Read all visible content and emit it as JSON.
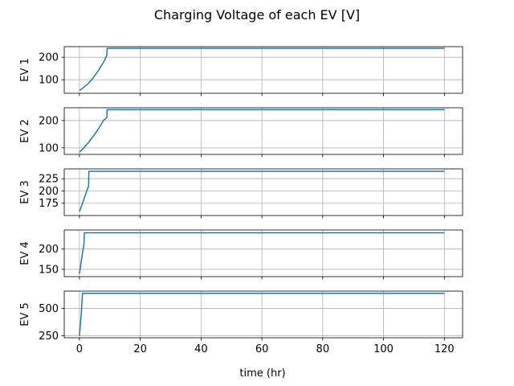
{
  "chart_data": {
    "type": "line",
    "title": "Charging Voltage of each EV [V]",
    "xlabel": "time (hr)",
    "xlim": [
      -5,
      126
    ],
    "x_ticks": [
      0,
      20,
      40,
      60,
      80,
      100,
      120
    ],
    "grid": true,
    "line_color": "#1f77b4",
    "subplots": [
      {
        "ylabel": "EV 1",
        "ylim": [
          40,
          247
        ],
        "y_ticks": [
          100,
          200
        ],
        "x": [
          0,
          1,
          2,
          3,
          4,
          5,
          6,
          7,
          8,
          9,
          9.1,
          120
        ],
        "y": [
          53,
          62,
          73,
          85,
          100,
          118,
          136,
          158,
          180,
          208,
          240,
          240
        ]
      },
      {
        "ylabel": "EV 2",
        "ylim": [
          76,
          247
        ],
        "y_ticks": [
          100,
          200
        ],
        "x": [
          0,
          1,
          2,
          3,
          4,
          5,
          6,
          7,
          8,
          9,
          9.1,
          120
        ],
        "y": [
          84,
          95,
          107,
          120,
          135,
          150,
          166,
          184,
          202,
          210,
          240,
          240
        ]
      },
      {
        "ylabel": "EV 3",
        "ylim": [
          150,
          245
        ],
        "y_ticks": [
          175,
          200,
          225
        ],
        "x": [
          0,
          1,
          2,
          3,
          3.1,
          120
        ],
        "y": [
          158,
          175,
          193,
          210,
          240,
          240
        ]
      },
      {
        "ylabel": "EV 4",
        "ylim": [
          132,
          247
        ],
        "y_ticks": [
          150,
          200
        ],
        "x": [
          0,
          0.5,
          1,
          1.5,
          1.6,
          120
        ],
        "y": [
          139,
          165,
          190,
          213,
          240,
          240
        ]
      },
      {
        "ylabel": "EV 5",
        "ylim": [
          230,
          660
        ],
        "y_ticks": [
          250,
          500
        ],
        "x": [
          0,
          0.3,
          0.6,
          0.9,
          1.0,
          120
        ],
        "y": [
          248,
          350,
          450,
          600,
          640,
          640
        ]
      }
    ]
  }
}
